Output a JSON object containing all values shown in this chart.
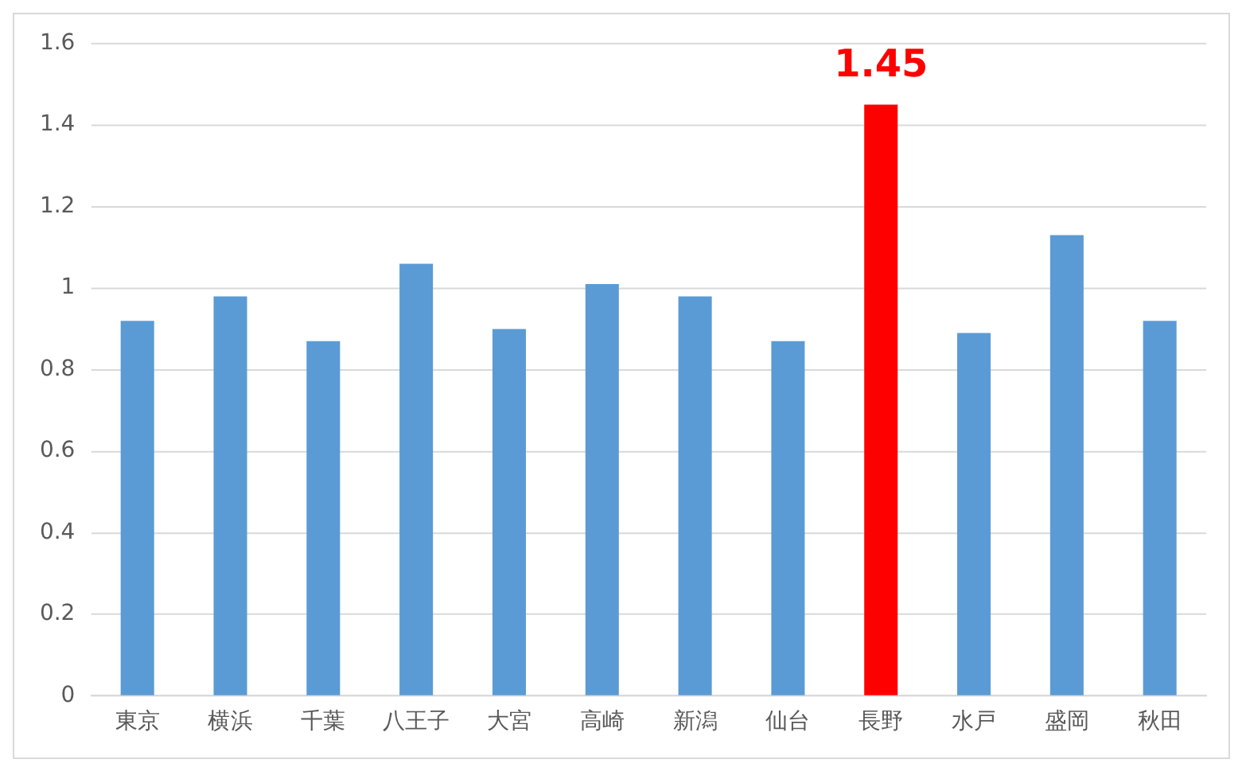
{
  "chart_data": {
    "type": "bar",
    "categories": [
      "東京",
      "横浜",
      "千葉",
      "八王子",
      "大宮",
      "高崎",
      "新潟",
      "仙台",
      "長野",
      "水戸",
      "盛岡",
      "秋田"
    ],
    "values": [
      0.92,
      0.98,
      0.87,
      1.06,
      0.9,
      1.01,
      0.98,
      0.87,
      1.45,
      0.89,
      1.13,
      0.92
    ],
    "colors": [
      "#5b9bd5",
      "#5b9bd5",
      "#5b9bd5",
      "#5b9bd5",
      "#5b9bd5",
      "#5b9bd5",
      "#5b9bd5",
      "#5b9bd5",
      "#ff0000",
      "#5b9bd5",
      "#5b9bd5",
      "#5b9bd5"
    ],
    "value_labels": [
      null,
      null,
      null,
      null,
      null,
      null,
      null,
      null,
      "1.45",
      null,
      null,
      null
    ],
    "ylim": [
      0,
      1.6
    ],
    "yticks": [
      0,
      0.2,
      0.4,
      0.6,
      0.8,
      1,
      1.2,
      1.4,
      1.6
    ],
    "grid": "y",
    "legend": false
  }
}
